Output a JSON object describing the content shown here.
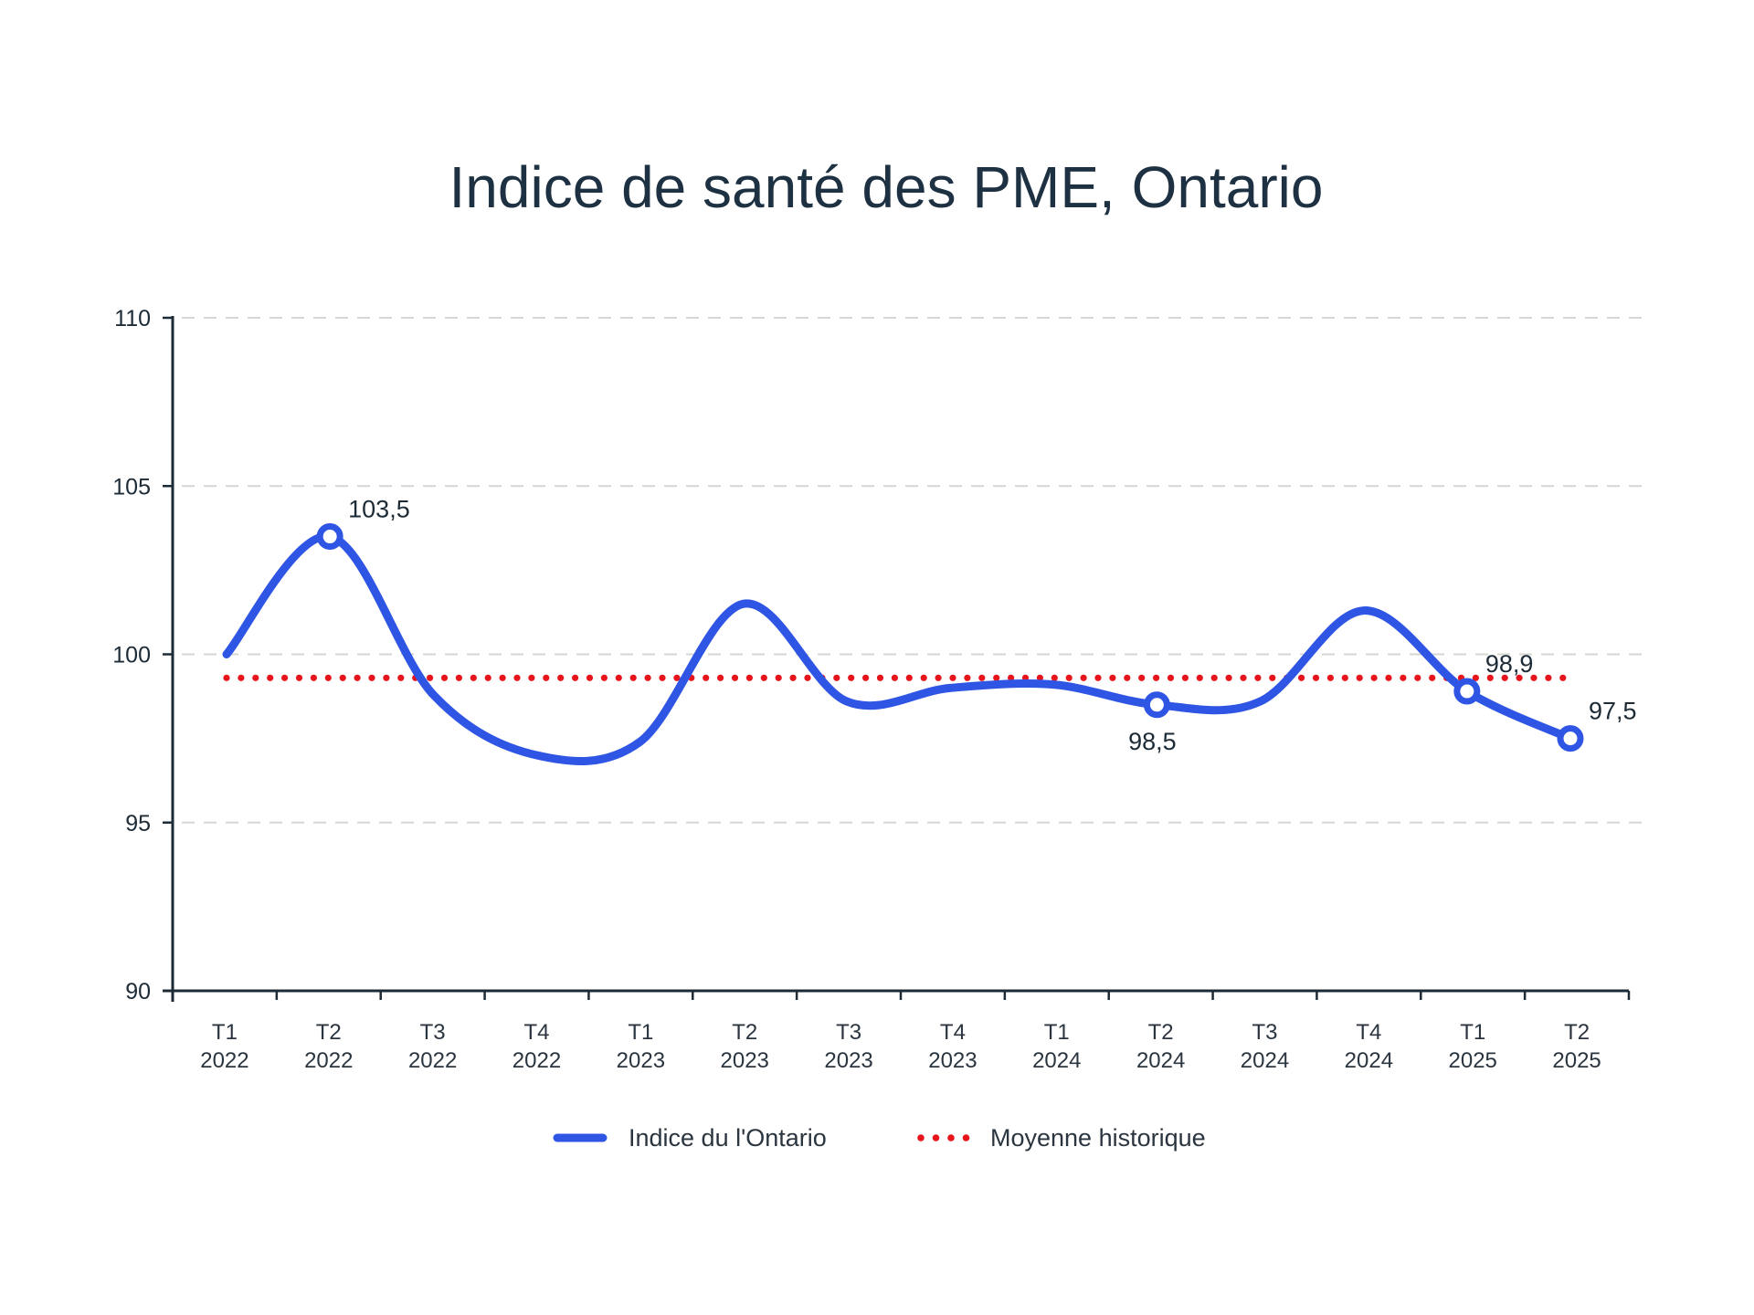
{
  "chart_data": {
    "type": "line",
    "title": "Indice de santé des PME, Ontario",
    "xlabel": "",
    "ylabel": "",
    "ylim": [
      90,
      110
    ],
    "yticks": [
      "90",
      "95",
      "100",
      "105",
      "110"
    ],
    "grid": true,
    "categories": [
      [
        "T1",
        "2022"
      ],
      [
        "T2",
        "2022"
      ],
      [
        "T3",
        "2022"
      ],
      [
        "T4",
        "2022"
      ],
      [
        "T1",
        "2023"
      ],
      [
        "T2",
        "2023"
      ],
      [
        "T3",
        "2023"
      ],
      [
        "T4",
        "2023"
      ],
      [
        "T1",
        "2024"
      ],
      [
        "T2",
        "2024"
      ],
      [
        "T3",
        "2024"
      ],
      [
        "T4",
        "2024"
      ],
      [
        "T1",
        "2025"
      ],
      [
        "T2",
        "2025"
      ]
    ],
    "series": [
      {
        "name": "Indice du l'Ontario",
        "color": "#2f55e4",
        "style": "solid-smooth",
        "values": [
          100,
          103.5,
          98.8,
          97.0,
          97.4,
          101.5,
          98.6,
          99.0,
          99.1,
          98.5,
          98.6,
          101.3,
          98.9,
          97.5
        ],
        "markers": [
          1,
          9,
          12,
          13
        ]
      },
      {
        "name": "Moyenne historique",
        "color": "#e8141c",
        "style": "dotted",
        "value": 99.3
      }
    ],
    "annotations": [
      {
        "index": 1,
        "text": "103,5",
        "position": "above-right"
      },
      {
        "index": 9,
        "text": "98,5",
        "position": "below"
      },
      {
        "index": 12,
        "text": "98,9",
        "position": "above-right"
      },
      {
        "index": 13,
        "text": "97,5",
        "position": "above-right"
      }
    ],
    "legend": {
      "placement": "bottom-center",
      "entries": [
        "Indice du l'Ontario",
        "Moyenne historique"
      ]
    }
  }
}
